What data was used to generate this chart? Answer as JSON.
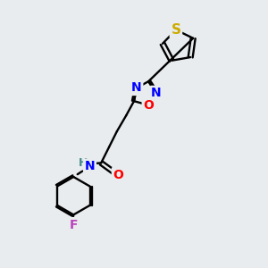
{
  "background_color": "#e8ecee",
  "bond_color": "#000000",
  "atom_colors": {
    "N": "#0000ff",
    "O": "#ff0000",
    "S": "#ccaa00",
    "F": "#bb44bb",
    "H": "#448888",
    "C": "#000000"
  },
  "font_size_atoms": 10,
  "figsize": [
    3.0,
    3.0
  ],
  "dpi": 100
}
